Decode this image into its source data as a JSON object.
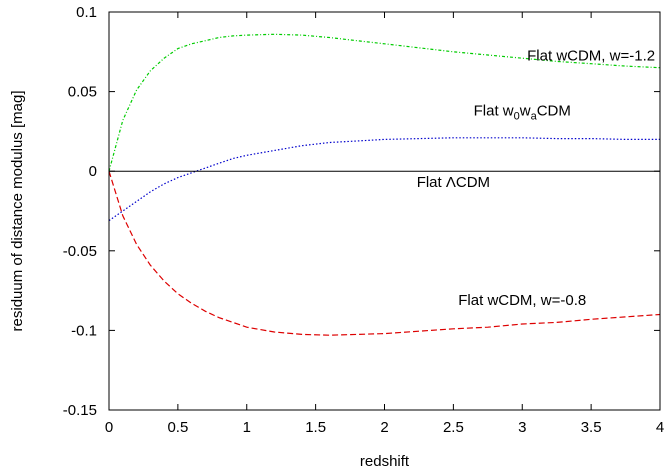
{
  "chart_data": {
    "type": "line",
    "title": "",
    "xlabel": "redshift",
    "ylabel": "residuum of distance modulus [mag]",
    "xlim": [
      0,
      4
    ],
    "ylim": [
      -0.15,
      0.1
    ],
    "grid": false,
    "legend": "none (inline labels)",
    "x_ticks": [
      0,
      0.5,
      1,
      1.5,
      2,
      2.5,
      3,
      3.5,
      4
    ],
    "x_tick_labels": [
      "0",
      "0.5",
      "1",
      "1.5",
      "2",
      "2.5",
      "3",
      "3.5",
      "4"
    ],
    "y_ticks": [
      -0.15,
      -0.1,
      -0.05,
      0,
      0.05,
      0.1
    ],
    "y_tick_labels": [
      "-0.15",
      "-0.1",
      "-0.05",
      "0",
      "0.05",
      "0.1"
    ],
    "x": [
      0,
      0.1,
      0.2,
      0.3,
      0.4,
      0.5,
      0.6,
      0.7,
      0.8,
      0.9,
      1.0,
      1.2,
      1.4,
      1.6,
      1.8,
      2.0,
      2.25,
      2.5,
      2.75,
      3.0,
      3.25,
      3.5,
      3.75,
      4.0
    ],
    "series": [
      {
        "label_parts": [
          "Flat wCDM, w=-1.2"
        ],
        "color": "#00cc00",
        "dash": "dotted-dash",
        "values": [
          0.0,
          0.032,
          0.051,
          0.063,
          0.071,
          0.077,
          0.08,
          0.082,
          0.084,
          0.085,
          0.0855,
          0.086,
          0.0855,
          0.084,
          0.082,
          0.08,
          0.0775,
          0.075,
          0.073,
          0.071,
          0.069,
          0.0675,
          0.066,
          0.065
        ]
      },
      {
        "label_parts": [
          "Flat w",
          "0",
          "w",
          "a",
          "CDM"
        ],
        "color": "#0000cc",
        "dash": "dotted",
        "values": [
          -0.031,
          -0.025,
          -0.019,
          -0.013,
          -0.008,
          -0.004,
          -0.001,
          0.002,
          0.005,
          0.008,
          0.01,
          0.013,
          0.016,
          0.018,
          0.019,
          0.02,
          0.0205,
          0.021,
          0.021,
          0.021,
          0.0205,
          0.0205,
          0.02,
          0.02
        ]
      },
      {
        "label_parts": [
          "Flat ",
          "Λ",
          "CDM"
        ],
        "color": "#000000",
        "dash": "solid",
        "values": [
          0,
          0,
          0,
          0,
          0,
          0,
          0,
          0,
          0,
          0,
          0,
          0,
          0,
          0,
          0,
          0,
          0,
          0,
          0,
          0,
          0,
          0,
          0,
          0
        ]
      },
      {
        "label_parts": [
          "Flat wCDM, w=-0.8"
        ],
        "color": "#dd0000",
        "dash": "dashed",
        "values": [
          0.0,
          -0.028,
          -0.046,
          -0.059,
          -0.069,
          -0.077,
          -0.083,
          -0.088,
          -0.092,
          -0.095,
          -0.098,
          -0.101,
          -0.1025,
          -0.103,
          -0.1025,
          -0.102,
          -0.1005,
          -0.099,
          -0.098,
          -0.096,
          -0.095,
          -0.093,
          -0.0915,
          -0.09
        ]
      }
    ]
  }
}
